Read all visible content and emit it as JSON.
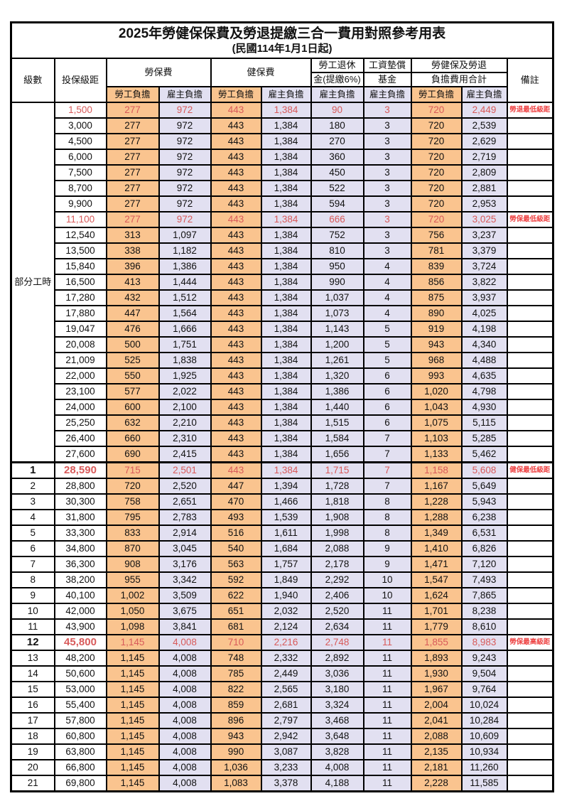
{
  "title": "2025年勞健保保費及勞退提繳三合一費用對照參考用表",
  "subtitle": "(民國114年1月1日起)",
  "header": {
    "level": "級數",
    "bracket": "投保級距",
    "labor_insurance": "勞保費",
    "health_insurance": "健保費",
    "pension_line1": "勞工退休",
    "pension_line2": "金(提繳6%)",
    "wage_fund_line1": "工資墊償",
    "wage_fund_line2": "基金",
    "total_line1": "勞健保及勞退",
    "total_line2": "負擔費用合計",
    "remark": "備註",
    "employee_share": "勞工負擔",
    "employer_share": "雇主負擔"
  },
  "part_time_label": "部分工時",
  "colors": {
    "employee_bg": "#FAC48F",
    "employer_bg": "#E2E0F1",
    "highlight_value_text": "#D85A5A",
    "remark_text": "#EE4343",
    "border": "#000000"
  },
  "chart_data": {
    "type": "table",
    "title": "2025年勞健保保費及勞退提繳三合一費用對照參考用表",
    "columns": [
      "級數",
      "投保級距",
      "勞保費-勞工負擔",
      "勞保費-雇主負擔",
      "健保費-勞工負擔",
      "健保費-雇主負擔",
      "勞工退休金(提繳6%)-雇主負擔",
      "工資墊償基金-雇主負擔",
      "合計-勞工負擔",
      "合計-雇主負擔",
      "備註"
    ]
  },
  "rows": [
    {
      "bracket": "1,500",
      "values": [
        "277",
        "972",
        "443",
        "1,384",
        "90",
        "3",
        "720",
        "2,449"
      ],
      "remark": "勞退最低級距",
      "red": true
    },
    {
      "bracket": "3,000",
      "values": [
        "277",
        "972",
        "443",
        "1,384",
        "180",
        "3",
        "720",
        "2,539"
      ]
    },
    {
      "bracket": "4,500",
      "values": [
        "277",
        "972",
        "443",
        "1,384",
        "270",
        "3",
        "720",
        "2,629"
      ]
    },
    {
      "bracket": "6,000",
      "values": [
        "277",
        "972",
        "443",
        "1,384",
        "360",
        "3",
        "720",
        "2,719"
      ]
    },
    {
      "bracket": "7,500",
      "values": [
        "277",
        "972",
        "443",
        "1,384",
        "450",
        "3",
        "720",
        "2,809"
      ]
    },
    {
      "bracket": "8,700",
      "values": [
        "277",
        "972",
        "443",
        "1,384",
        "522",
        "3",
        "720",
        "2,881"
      ]
    },
    {
      "bracket": "9,900",
      "values": [
        "277",
        "972",
        "443",
        "1,384",
        "594",
        "3",
        "720",
        "2,953"
      ]
    },
    {
      "bracket": "11,100",
      "values": [
        "277",
        "972",
        "443",
        "1,384",
        "666",
        "3",
        "720",
        "3,025"
      ],
      "remark": "勞保最低級距",
      "red": true
    },
    {
      "bracket": "12,540",
      "values": [
        "313",
        "1,097",
        "443",
        "1,384",
        "752",
        "3",
        "756",
        "3,237"
      ]
    },
    {
      "bracket": "13,500",
      "values": [
        "338",
        "1,182",
        "443",
        "1,384",
        "810",
        "3",
        "781",
        "3,379"
      ]
    },
    {
      "bracket": "15,840",
      "values": [
        "396",
        "1,386",
        "443",
        "1,384",
        "950",
        "4",
        "839",
        "3,724"
      ]
    },
    {
      "bracket": "16,500",
      "values": [
        "413",
        "1,444",
        "443",
        "1,384",
        "990",
        "4",
        "856",
        "3,822"
      ]
    },
    {
      "bracket": "17,280",
      "values": [
        "432",
        "1,512",
        "443",
        "1,384",
        "1,037",
        "4",
        "875",
        "3,937"
      ]
    },
    {
      "bracket": "17,880",
      "values": [
        "447",
        "1,564",
        "443",
        "1,384",
        "1,073",
        "4",
        "890",
        "4,025"
      ]
    },
    {
      "bracket": "19,047",
      "values": [
        "476",
        "1,666",
        "443",
        "1,384",
        "1,143",
        "5",
        "919",
        "4,198"
      ]
    },
    {
      "bracket": "20,008",
      "values": [
        "500",
        "1,751",
        "443",
        "1,384",
        "1,200",
        "5",
        "943",
        "4,340"
      ]
    },
    {
      "bracket": "21,009",
      "values": [
        "525",
        "1,838",
        "443",
        "1,384",
        "1,261",
        "5",
        "968",
        "4,488"
      ]
    },
    {
      "bracket": "22,000",
      "values": [
        "550",
        "1,925",
        "443",
        "1,384",
        "1,320",
        "6",
        "993",
        "4,635"
      ]
    },
    {
      "bracket": "23,100",
      "values": [
        "577",
        "2,022",
        "443",
        "1,384",
        "1,386",
        "6",
        "1,020",
        "4,798"
      ]
    },
    {
      "bracket": "24,000",
      "values": [
        "600",
        "2,100",
        "443",
        "1,384",
        "1,440",
        "6",
        "1,043",
        "4,930"
      ]
    },
    {
      "bracket": "25,250",
      "values": [
        "632",
        "2,210",
        "443",
        "1,384",
        "1,515",
        "6",
        "1,075",
        "5,115"
      ]
    },
    {
      "bracket": "26,400",
      "values": [
        "660",
        "2,310",
        "443",
        "1,384",
        "1,584",
        "7",
        "1,103",
        "5,285"
      ]
    },
    {
      "bracket": "27,600",
      "values": [
        "690",
        "2,415",
        "443",
        "1,384",
        "1,656",
        "7",
        "1,133",
        "5,462"
      ]
    },
    {
      "level": "1",
      "bracket": "28,590",
      "values": [
        "715",
        "2,501",
        "443",
        "1,384",
        "1,715",
        "7",
        "1,158",
        "5,608"
      ],
      "remark": "健保最低級距",
      "red": true,
      "bold": true
    },
    {
      "level": "2",
      "bracket": "28,800",
      "values": [
        "720",
        "2,520",
        "447",
        "1,394",
        "1,728",
        "7",
        "1,167",
        "5,649"
      ]
    },
    {
      "level": "3",
      "bracket": "30,300",
      "values": [
        "758",
        "2,651",
        "470",
        "1,466",
        "1,818",
        "8",
        "1,228",
        "5,943"
      ]
    },
    {
      "level": "4",
      "bracket": "31,800",
      "values": [
        "795",
        "2,783",
        "493",
        "1,539",
        "1,908",
        "8",
        "1,288",
        "6,238"
      ]
    },
    {
      "level": "5",
      "bracket": "33,300",
      "values": [
        "833",
        "2,914",
        "516",
        "1,611",
        "1,998",
        "8",
        "1,349",
        "6,531"
      ]
    },
    {
      "level": "6",
      "bracket": "34,800",
      "values": [
        "870",
        "3,045",
        "540",
        "1,684",
        "2,088",
        "9",
        "1,410",
        "6,826"
      ]
    },
    {
      "level": "7",
      "bracket": "36,300",
      "values": [
        "908",
        "3,176",
        "563",
        "1,757",
        "2,178",
        "9",
        "1,471",
        "7,120"
      ]
    },
    {
      "level": "8",
      "bracket": "38,200",
      "values": [
        "955",
        "3,342",
        "592",
        "1,849",
        "2,292",
        "10",
        "1,547",
        "7,493"
      ]
    },
    {
      "level": "9",
      "bracket": "40,100",
      "values": [
        "1,002",
        "3,509",
        "622",
        "1,940",
        "2,406",
        "10",
        "1,624",
        "7,865"
      ]
    },
    {
      "level": "10",
      "bracket": "42,000",
      "values": [
        "1,050",
        "3,675",
        "651",
        "2,032",
        "2,520",
        "11",
        "1,701",
        "8,238"
      ]
    },
    {
      "level": "11",
      "bracket": "43,900",
      "values": [
        "1,098",
        "3,841",
        "681",
        "2,124",
        "2,634",
        "11",
        "1,779",
        "8,610"
      ]
    },
    {
      "level": "12",
      "bracket": "45,800",
      "values": [
        "1,145",
        "4,008",
        "710",
        "2,216",
        "2,748",
        "11",
        "1,855",
        "8,983"
      ],
      "remark": "勞保最高級距",
      "red": true,
      "bold": true
    },
    {
      "level": "13",
      "bracket": "48,200",
      "values": [
        "1,145",
        "4,008",
        "748",
        "2,332",
        "2,892",
        "11",
        "1,893",
        "9,243"
      ]
    },
    {
      "level": "14",
      "bracket": "50,600",
      "values": [
        "1,145",
        "4,008",
        "785",
        "2,449",
        "3,036",
        "11",
        "1,930",
        "9,504"
      ]
    },
    {
      "level": "15",
      "bracket": "53,000",
      "values": [
        "1,145",
        "4,008",
        "822",
        "2,565",
        "3,180",
        "11",
        "1,967",
        "9,764"
      ]
    },
    {
      "level": "16",
      "bracket": "55,400",
      "values": [
        "1,145",
        "4,008",
        "859",
        "2,681",
        "3,324",
        "11",
        "2,004",
        "10,024"
      ]
    },
    {
      "level": "17",
      "bracket": "57,800",
      "values": [
        "1,145",
        "4,008",
        "896",
        "2,797",
        "3,468",
        "11",
        "2,041",
        "10,284"
      ]
    },
    {
      "level": "18",
      "bracket": "60,800",
      "values": [
        "1,145",
        "4,008",
        "943",
        "2,942",
        "3,648",
        "11",
        "2,088",
        "10,609"
      ]
    },
    {
      "level": "19",
      "bracket": "63,800",
      "values": [
        "1,145",
        "4,008",
        "990",
        "3,087",
        "3,828",
        "11",
        "2,135",
        "10,934"
      ]
    },
    {
      "level": "20",
      "bracket": "66,800",
      "values": [
        "1,145",
        "4,008",
        "1,036",
        "3,233",
        "4,008",
        "11",
        "2,181",
        "11,260"
      ]
    },
    {
      "level": "21",
      "bracket": "69,800",
      "values": [
        "1,145",
        "4,008",
        "1,083",
        "3,378",
        "4,188",
        "11",
        "2,228",
        "11,585"
      ]
    }
  ]
}
